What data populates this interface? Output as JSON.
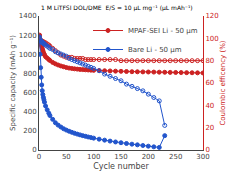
{
  "chart_data": {
    "type": "line",
    "xlabel": "Cycle number",
    "ylabel": "Specific capacity (mAh g⁻¹)",
    "y2label": "Coulombic efficency (%)",
    "annotation": "1 M LiTFSI DOL/DME  E/S = 10 μL mg⁻¹ (μL mAh⁻¹)",
    "xlim": [
      0,
      300
    ],
    "xticks": [
      0,
      50,
      100,
      150,
      200,
      250,
      300
    ],
    "ylim": [
      0,
      1400
    ],
    "yticks": [
      0,
      200,
      400,
      600,
      800,
      1000,
      1200,
      1400
    ],
    "y2lim": [
      0,
      120
    ],
    "y2ticks": [
      0,
      20,
      40,
      60,
      80,
      100,
      120
    ],
    "grid": false,
    "legend": "upper right",
    "series": [
      {
        "name": "MPAF-SEI Li - 50 μm",
        "color": "#cc2222",
        "marker": "circle",
        "x": [
          1,
          2,
          3,
          4,
          5,
          6,
          7,
          8,
          9,
          10,
          12,
          15,
          18,
          20,
          25,
          30,
          35,
          40,
          45,
          50,
          55,
          60,
          65,
          70,
          75,
          80,
          85,
          90,
          95,
          100,
          110,
          120,
          130,
          140,
          150,
          160,
          170,
          180,
          190,
          200,
          210,
          220,
          230,
          240,
          250,
          260,
          270,
          280,
          290,
          300
        ],
        "values": [
          1200,
          1150,
          1120,
          1100,
          1080,
          1060,
          1040,
          1020,
          1005,
          995,
          975,
          960,
          945,
          935,
          915,
          900,
          888,
          878,
          870,
          862,
          856,
          852,
          848,
          845,
          842,
          840,
          838,
          836,
          834,
          832,
          830,
          828,
          826,
          824,
          822,
          820,
          818,
          817,
          816,
          815,
          814,
          813,
          812,
          811,
          810,
          809,
          808,
          807,
          806,
          805
        ]
      },
      {
        "name": "Bare Li - 50 μm",
        "color": "#2255cc",
        "marker": "circle",
        "x": [
          1,
          2,
          3,
          4,
          5,
          6,
          7,
          8,
          9,
          10,
          12,
          15,
          18,
          20,
          25,
          30,
          35,
          40,
          45,
          50,
          55,
          60,
          65,
          70,
          75,
          80,
          85,
          90,
          95,
          100,
          110,
          120,
          130,
          140,
          150,
          160,
          170,
          180,
          190,
          200,
          210,
          220,
          230
        ],
        "values": [
          1180,
          1000,
          860,
          760,
          680,
          620,
          580,
          550,
          525,
          500,
          460,
          420,
          385,
          360,
          320,
          285,
          260,
          240,
          222,
          208,
          196,
          185,
          175,
          166,
          158,
          150,
          143,
          136,
          130,
          124,
          113,
          103,
          93,
          84,
          76,
          68,
          61,
          54,
          47,
          40,
          33,
          27,
          150
        ]
      },
      {
        "color": "#cc2222",
        "marker": "circle-open",
        "axis": "y2",
        "x": [
          1,
          2,
          3,
          4,
          5,
          6,
          7,
          8,
          9,
          10,
          12,
          15,
          18,
          20,
          25,
          30,
          35,
          40,
          45,
          50,
          55,
          60,
          65,
          70,
          75,
          80,
          85,
          90,
          95,
          100,
          110,
          120,
          130,
          140,
          150,
          160,
          170,
          180,
          190,
          200,
          210,
          220,
          230,
          240,
          250,
          260,
          270,
          280,
          290,
          300
        ],
        "values": [
          100,
          99,
          98,
          98,
          97,
          97,
          97,
          97,
          96,
          96,
          96,
          95,
          94,
          93,
          91,
          89,
          87,
          85,
          84,
          83,
          83,
          83,
          82,
          82,
          82,
          82,
          81,
          81,
          81,
          81,
          81,
          81,
          81,
          81,
          80,
          80,
          80,
          80,
          80,
          80,
          80,
          80,
          80,
          80,
          80,
          80,
          80,
          80,
          80,
          80
        ]
      },
      {
        "color": "#2255cc",
        "marker": "circle-open",
        "axis": "y2",
        "x": [
          1,
          2,
          3,
          4,
          5,
          6,
          7,
          8,
          9,
          10,
          12,
          15,
          18,
          20,
          25,
          30,
          35,
          40,
          45,
          50,
          55,
          60,
          65,
          70,
          75,
          80,
          85,
          90,
          95,
          100,
          110,
          120,
          130,
          140,
          150,
          160,
          170,
          180,
          190,
          200,
          210,
          220,
          230
        ],
        "values": [
          100,
          99,
          98,
          97,
          97,
          96,
          96,
          96,
          95,
          95,
          94,
          93,
          92,
          91,
          90,
          88,
          87,
          86,
          85,
          84,
          82,
          81,
          80,
          79,
          78,
          77,
          76,
          75,
          74,
          73,
          71,
          68,
          66,
          64,
          62,
          59,
          57,
          55,
          53,
          50,
          47,
          44,
          22
        ]
      }
    ]
  }
}
